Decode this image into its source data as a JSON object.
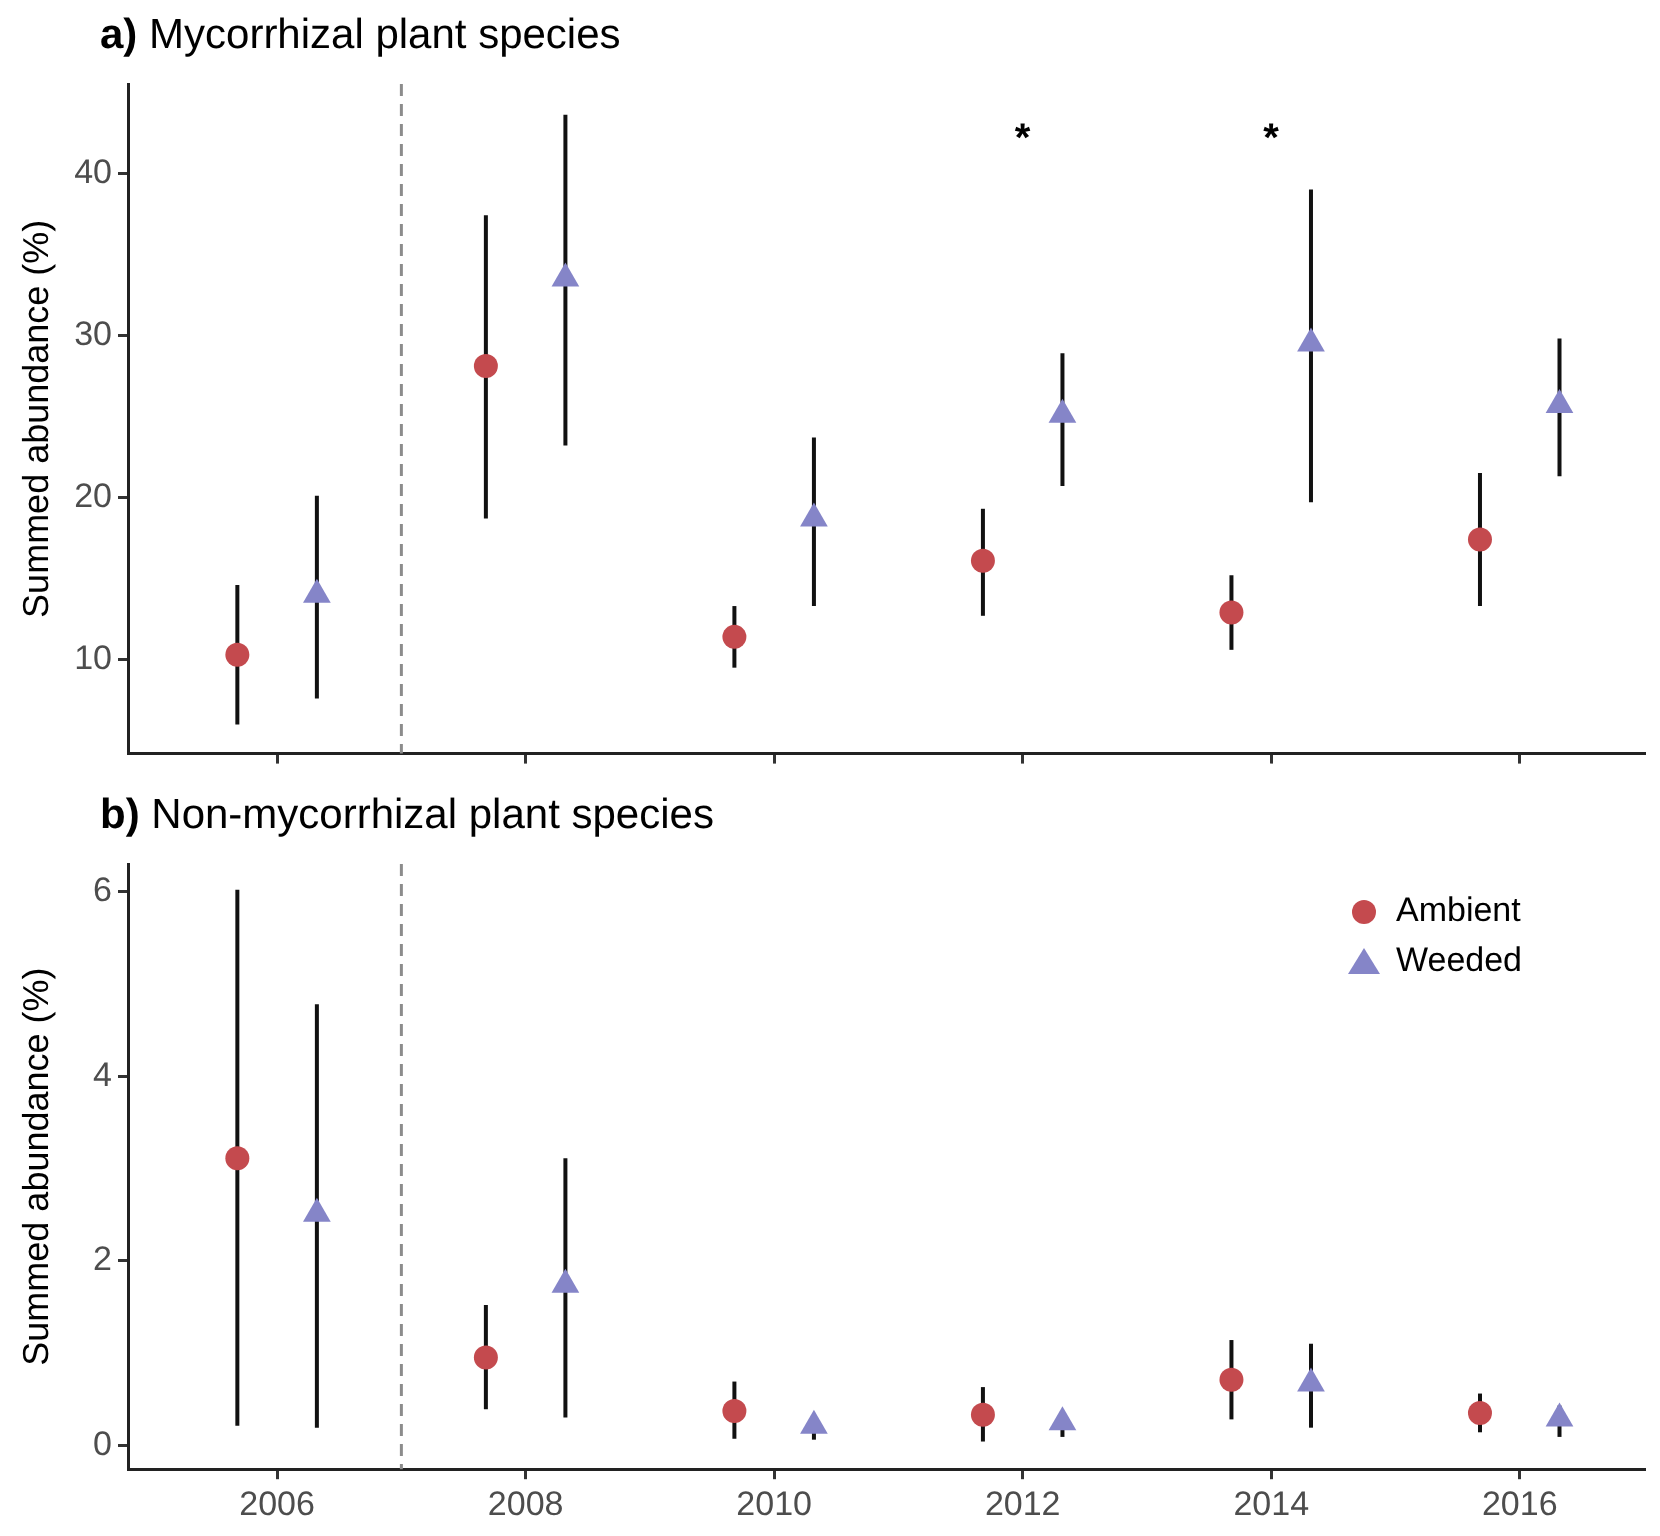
{
  "chart_data": [
    {
      "type": "scatter",
      "title": "a) Mycorrhizal plant species",
      "ylabel": "Summed abundance (%)",
      "xlim": [
        2004.8,
        2017.0
      ],
      "xticks": [
        2006,
        2008,
        2010,
        2012,
        2014,
        2016
      ],
      "ylim": [
        4.2,
        45.5
      ],
      "yticks": [
        10,
        20,
        30,
        40
      ],
      "tick_labels": "y",
      "grid": false,
      "legend": false,
      "ref_lines": [
        {
          "axis": "x",
          "value": 2007,
          "color": "#8c8c8c",
          "line_style": "dashed"
        }
      ],
      "annotations": [
        "*",
        "*"
      ],
      "series": [
        {
          "color": "#c44a4e",
          "marker": "circle",
          "x": [
            2005.68,
            2007.68,
            2009.68,
            2011.68,
            2013.68,
            2015.68
          ],
          "values": [
            10.3,
            28.1,
            11.4,
            16.1,
            12.9,
            17.4
          ],
          "errors": [
            [
              6.0,
              14.6
            ],
            [
              18.7,
              37.4
            ],
            [
              9.5,
              13.3
            ],
            [
              12.7,
              19.3
            ],
            [
              10.6,
              15.2
            ],
            [
              13.3,
              21.5
            ]
          ]
        },
        {
          "color": "#8585c8",
          "marker": "triangle",
          "x": [
            2006.32,
            2008.32,
            2010.32,
            2012.32,
            2014.32,
            2016.32
          ],
          "values": [
            14.0,
            33.5,
            18.7,
            25.1,
            29.5,
            25.7
          ],
          "errors": [
            [
              7.6,
              20.1
            ],
            [
              23.2,
              43.6
            ],
            [
              13.3,
              23.7
            ],
            [
              20.7,
              28.9
            ],
            [
              19.7,
              39.0
            ],
            [
              21.3,
              29.8
            ]
          ]
        }
      ]
    },
    {
      "type": "scatter",
      "title": "b) Non-mycorrhizal plant species",
      "ylabel": "Summed abundance (%)",
      "xlim": [
        2004.8,
        2017.0
      ],
      "xticks": [
        2006,
        2008,
        2010,
        2012,
        2014,
        2016
      ],
      "ylim": [
        -0.26,
        6.3
      ],
      "yticks": [
        0,
        2,
        4,
        6
      ],
      "grid": false,
      "legend": "top right",
      "ref_lines": [
        {
          "axis": "x",
          "value": 2007,
          "color": "#8c8c8c",
          "line_style": "dashed"
        }
      ],
      "series": [
        {
          "name": "Ambient",
          "color": "#c44a4e",
          "marker": "circle",
          "x": [
            2005.68,
            2007.68,
            2009.68,
            2011.68,
            2013.68,
            2015.68
          ],
          "values": [
            3.11,
            0.95,
            0.37,
            0.33,
            0.71,
            0.35
          ],
          "errors": [
            [
              0.21,
              6.02
            ],
            [
              0.39,
              1.52
            ],
            [
              0.07,
              0.69
            ],
            [
              0.04,
              0.63
            ],
            [
              0.28,
              1.14
            ],
            [
              0.14,
              0.56
            ]
          ]
        },
        {
          "name": "Weeded",
          "color": "#8585c8",
          "marker": "triangle",
          "x": [
            2006.32,
            2008.32,
            2010.32,
            2012.32,
            2014.32,
            2016.32
          ],
          "values": [
            2.51,
            1.74,
            0.21,
            0.25,
            0.67,
            0.29
          ],
          "errors": [
            [
              0.19,
              4.78
            ],
            [
              0.3,
              3.11
            ],
            [
              0.06,
              0.24
            ],
            [
              0.09,
              0.35
            ],
            [
              0.19,
              1.1
            ],
            [
              0.09,
              0.43
            ]
          ]
        }
      ]
    }
  ]
}
